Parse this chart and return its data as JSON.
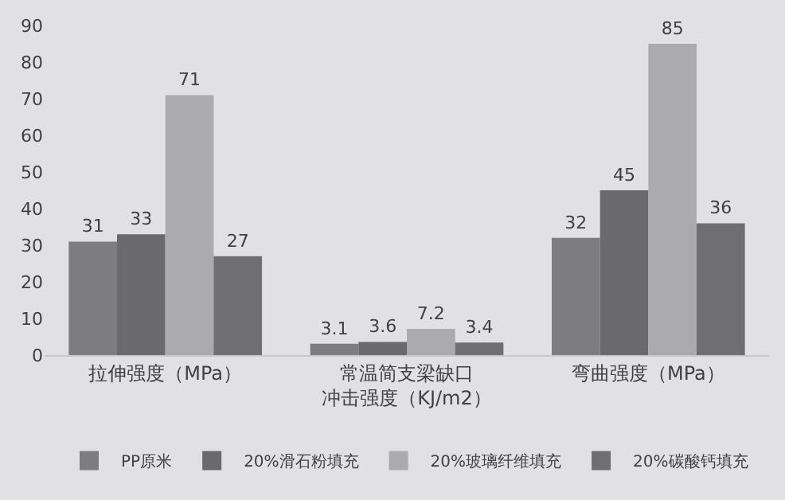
{
  "chart_data": {
    "type": "bar",
    "categories": [
      "拉伸强度（MPa）",
      "常温简支梁缺口冲击强度（KJ/m2）",
      "弯曲强度（MPa）"
    ],
    "series": [
      {
        "name": "PP原米",
        "color": "#7d7d7f",
        "values": [
          31,
          3.1,
          32
        ]
      },
      {
        "name": "20%滑石粉填充",
        "color": "#6a6a6c",
        "values": [
          33,
          3.6,
          45
        ]
      },
      {
        "name": "20%玻璃纤维填充",
        "color": "#ababad",
        "values": [
          71,
          7.2,
          85
        ]
      },
      {
        "name": "20%碳酸钙填充",
        "color": "#6f6f71",
        "values": [
          27,
          3.4,
          36
        ]
      }
    ],
    "ylim": [
      0,
      90
    ],
    "yticks": [
      0,
      10,
      20,
      30,
      40,
      50,
      60,
      70,
      80,
      90
    ],
    "data_labels": true,
    "grid": false,
    "legend": "bottom"
  }
}
